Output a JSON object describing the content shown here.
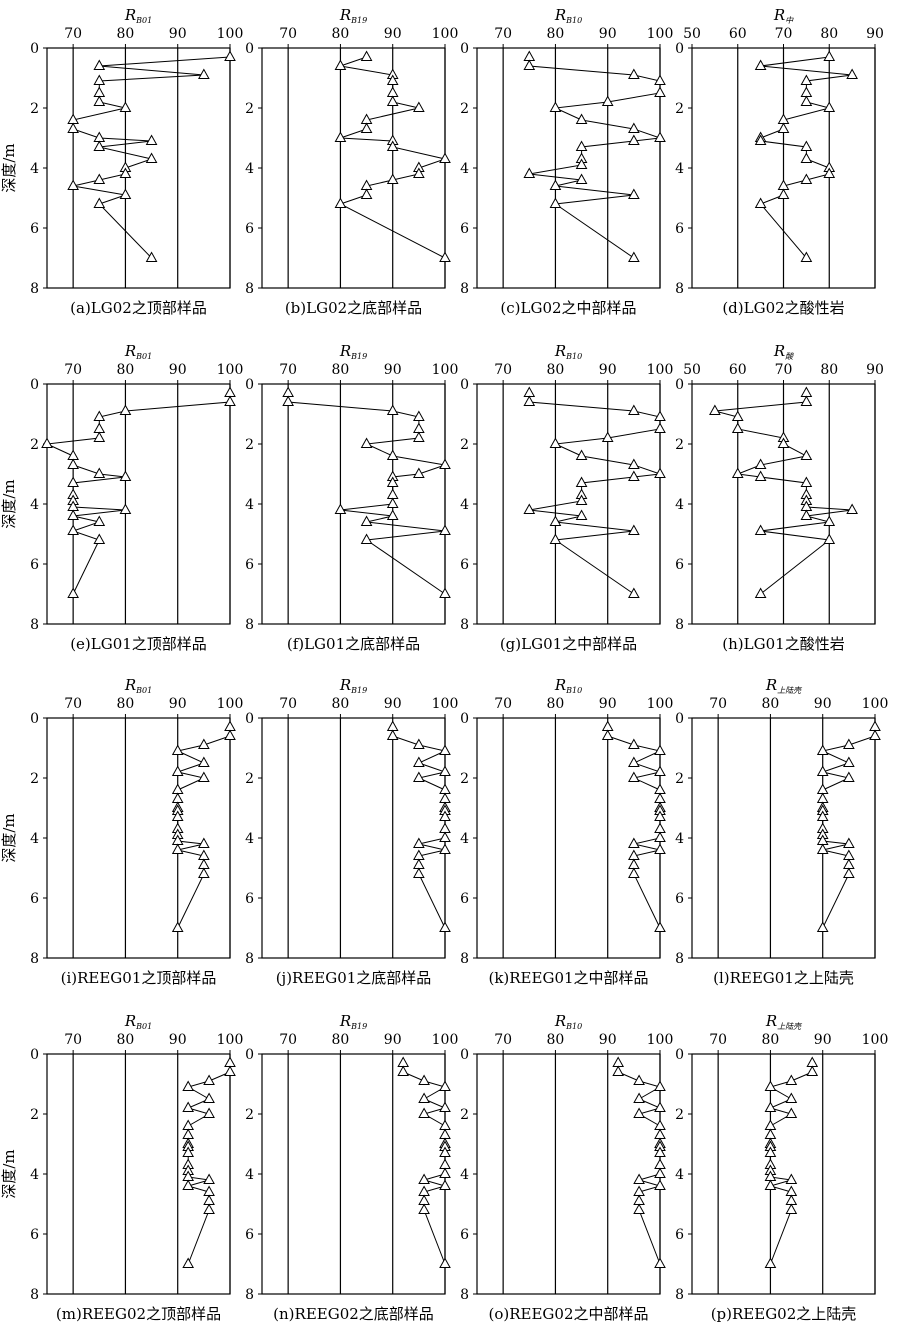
{
  "figure": {
    "y_label": "深度/m",
    "y_ticks": [
      0,
      2,
      4,
      6,
      8
    ],
    "ylim": [
      0,
      8
    ]
  },
  "chart_data": [
    {
      "type": "line",
      "caption": "(a)LG02之顶部样品",
      "var": "R",
      "sub": "B01",
      "xlim": [
        65,
        100
      ],
      "x_ticks": [
        70,
        80,
        90,
        100
      ],
      "vlines": [
        70,
        80,
        90,
        100
      ],
      "series": [
        {
          "marker": "triangle",
          "x": [
            100,
            75,
            95,
            75,
            75,
            75,
            80,
            70,
            70,
            75,
            85,
            75,
            85,
            80,
            80,
            75,
            70,
            80,
            75,
            85
          ],
          "y": [
            0.3,
            0.6,
            0.9,
            1.1,
            1.5,
            1.8,
            2.0,
            2.4,
            2.7,
            3.0,
            3.1,
            3.3,
            3.7,
            4.0,
            4.2,
            4.4,
            4.6,
            4.9,
            5.2,
            7.0
          ]
        }
      ]
    },
    {
      "type": "line",
      "caption": "(b)LG02之底部样品",
      "var": "R",
      "sub": "B19",
      "xlim": [
        65,
        100
      ],
      "x_ticks": [
        70,
        80,
        90,
        100
      ],
      "vlines": [
        70,
        80,
        90,
        100
      ],
      "series": [
        {
          "marker": "triangle",
          "x": [
            85,
            80,
            90,
            90,
            90,
            90,
            95,
            85,
            85,
            80,
            90,
            90,
            100,
            95,
            95,
            90,
            85,
            85,
            80,
            100
          ],
          "y": [
            0.3,
            0.6,
            0.9,
            1.1,
            1.5,
            1.8,
            2.0,
            2.4,
            2.7,
            3.0,
            3.1,
            3.3,
            3.7,
            4.0,
            4.2,
            4.4,
            4.6,
            4.9,
            5.2,
            7.0
          ]
        }
      ]
    },
    {
      "type": "line",
      "caption": "(c)LG02之中部样品",
      "var": "R",
      "sub": "B10",
      "xlim": [
        65,
        100
      ],
      "x_ticks": [
        70,
        80,
        90,
        100
      ],
      "vlines": [
        70,
        80,
        90,
        100
      ],
      "series": [
        {
          "marker": "triangle",
          "x": [
            75,
            75,
            95,
            100,
            100,
            90,
            80,
            85,
            95,
            100,
            95,
            85,
            85,
            85,
            75,
            85,
            80,
            95,
            80,
            95
          ],
          "y": [
            0.3,
            0.6,
            0.9,
            1.1,
            1.5,
            1.8,
            2.0,
            2.4,
            2.7,
            3.0,
            3.1,
            3.3,
            3.7,
            3.9,
            4.2,
            4.4,
            4.6,
            4.9,
            5.2,
            7.0
          ]
        }
      ]
    },
    {
      "type": "line",
      "caption": "(d)LG02之酸性岩",
      "var": "R",
      "sub": "中",
      "xlim": [
        50,
        90
      ],
      "x_ticks": [
        50,
        60,
        70,
        80,
        90
      ],
      "vlines": [
        60,
        70,
        80,
        90
      ],
      "series": [
        {
          "marker": "triangle",
          "x": [
            80,
            65,
            85,
            75,
            75,
            75,
            80,
            70,
            70,
            65,
            65,
            75,
            75,
            80,
            80,
            75,
            70,
            70,
            65,
            75
          ],
          "y": [
            0.3,
            0.6,
            0.9,
            1.1,
            1.5,
            1.8,
            2.0,
            2.4,
            2.7,
            3.0,
            3.1,
            3.3,
            3.7,
            4.0,
            4.2,
            4.4,
            4.6,
            4.9,
            5.2,
            7.0
          ]
        }
      ]
    },
    {
      "type": "line",
      "caption": "(e)LG01之顶部样品",
      "var": "R",
      "sub": "B01",
      "xlim": [
        65,
        100
      ],
      "x_ticks": [
        70,
        80,
        90,
        100
      ],
      "vlines": [
        70,
        80,
        90,
        100
      ],
      "series": [
        {
          "marker": "triangle",
          "x": [
            100,
            100,
            80,
            75,
            75,
            75,
            65,
            70,
            70,
            75,
            80,
            70,
            70,
            70,
            70,
            80,
            70,
            75,
            70,
            75,
            70
          ],
          "y": [
            0.3,
            0.6,
            0.9,
            1.1,
            1.5,
            1.8,
            2.0,
            2.4,
            2.7,
            3.0,
            3.1,
            3.3,
            3.7,
            3.9,
            4.1,
            4.2,
            4.4,
            4.6,
            4.9,
            5.2,
            7.0
          ]
        }
      ]
    },
    {
      "type": "line",
      "caption": "(f)LG01之底部样品",
      "var": "R",
      "sub": "B19",
      "xlim": [
        65,
        100
      ],
      "x_ticks": [
        70,
        80,
        90,
        100
      ],
      "vlines": [
        70,
        80,
        90,
        100
      ],
      "series": [
        {
          "marker": "triangle",
          "x": [
            70,
            70,
            90,
            95,
            95,
            95,
            85,
            90,
            100,
            95,
            90,
            90,
            90,
            90,
            80,
            90,
            85,
            100,
            85,
            100
          ],
          "y": [
            0.3,
            0.6,
            0.9,
            1.1,
            1.5,
            1.8,
            2.0,
            2.4,
            2.7,
            3.0,
            3.1,
            3.3,
            3.7,
            4.0,
            4.2,
            4.4,
            4.6,
            4.9,
            5.2,
            7.0
          ]
        }
      ]
    },
    {
      "type": "line",
      "caption": "(g)LG01之中部样品",
      "var": "R",
      "sub": "B10",
      "xlim": [
        65,
        100
      ],
      "x_ticks": [
        70,
        80,
        90,
        100
      ],
      "vlines": [
        70,
        80,
        90,
        100
      ],
      "series": [
        {
          "marker": "triangle",
          "x": [
            75,
            75,
            95,
            100,
            100,
            90,
            80,
            85,
            95,
            100,
            95,
            85,
            85,
            85,
            75,
            85,
            80,
            95,
            80,
            95
          ],
          "y": [
            0.3,
            0.6,
            0.9,
            1.1,
            1.5,
            1.8,
            2.0,
            2.4,
            2.7,
            3.0,
            3.1,
            3.3,
            3.7,
            3.9,
            4.2,
            4.4,
            4.6,
            4.9,
            5.2,
            7.0
          ]
        }
      ]
    },
    {
      "type": "line",
      "caption": "(h)LG01之酸性岩",
      "var": "R",
      "sub": "酸",
      "xlim": [
        50,
        90
      ],
      "x_ticks": [
        50,
        60,
        70,
        80,
        90
      ],
      "vlines": [
        60,
        70,
        80,
        90
      ],
      "series": [
        {
          "marker": "triangle",
          "x": [
            75,
            75,
            55,
            60,
            60,
            70,
            70,
            75,
            65,
            60,
            65,
            75,
            75,
            75,
            75,
            85,
            75,
            80,
            65,
            80,
            65
          ],
          "y": [
            0.3,
            0.6,
            0.9,
            1.1,
            1.5,
            1.8,
            2.0,
            2.4,
            2.7,
            3.0,
            3.1,
            3.3,
            3.7,
            3.9,
            4.1,
            4.2,
            4.4,
            4.6,
            4.9,
            5.2,
            7.0
          ]
        }
      ]
    },
    {
      "type": "line",
      "caption": "(i)REEG01之顶部样品",
      "var": "R",
      "sub": "B01",
      "xlim": [
        65,
        100
      ],
      "x_ticks": [
        70,
        80,
        90,
        100
      ],
      "vlines": [
        70,
        80,
        90,
        100
      ],
      "series": [
        {
          "marker": "triangle",
          "x": [
            100,
            100,
            95,
            90,
            95,
            90,
            95,
            90,
            90,
            90,
            90,
            90,
            90,
            90,
            90,
            95,
            90,
            95,
            95,
            95,
            90
          ],
          "y": [
            0.3,
            0.6,
            0.9,
            1.1,
            1.5,
            1.8,
            2.0,
            2.4,
            2.7,
            3.0,
            3.1,
            3.3,
            3.7,
            3.9,
            4.1,
            4.2,
            4.4,
            4.6,
            4.9,
            5.2,
            7.0
          ]
        }
      ]
    },
    {
      "type": "line",
      "caption": "(j)REEG01之底部样品",
      "var": "R",
      "sub": "B19",
      "xlim": [
        65,
        100
      ],
      "x_ticks": [
        70,
        80,
        90,
        100
      ],
      "vlines": [
        70,
        80,
        90,
        100
      ],
      "series": [
        {
          "marker": "triangle",
          "x": [
            90,
            90,
            95,
            100,
            95,
            100,
            95,
            100,
            100,
            100,
            100,
            100,
            100,
            100,
            95,
            100,
            95,
            95,
            95,
            100
          ],
          "y": [
            0.3,
            0.6,
            0.9,
            1.1,
            1.5,
            1.8,
            2.0,
            2.4,
            2.7,
            3.0,
            3.1,
            3.3,
            3.7,
            4.0,
            4.2,
            4.4,
            4.6,
            4.9,
            5.2,
            7.0
          ]
        }
      ]
    },
    {
      "type": "line",
      "caption": "(k)REEG01之中部样品",
      "var": "R",
      "sub": "B10",
      "xlim": [
        65,
        100
      ],
      "x_ticks": [
        70,
        80,
        90,
        100
      ],
      "vlines": [
        70,
        80,
        90,
        100
      ],
      "series": [
        {
          "marker": "triangle",
          "x": [
            90,
            90,
            95,
            100,
            95,
            100,
            95,
            100,
            100,
            100,
            100,
            100,
            100,
            100,
            95,
            100,
            95,
            95,
            95,
            100
          ],
          "y": [
            0.3,
            0.6,
            0.9,
            1.1,
            1.5,
            1.8,
            2.0,
            2.4,
            2.7,
            3.0,
            3.1,
            3.3,
            3.7,
            4.0,
            4.2,
            4.4,
            4.6,
            4.9,
            5.2,
            7.0
          ]
        }
      ]
    },
    {
      "type": "line",
      "caption": "(l)REEG01之上陆壳",
      "var": "R",
      "sub": "上陆壳",
      "xlim": [
        65,
        100
      ],
      "x_ticks": [
        70,
        80,
        90,
        100
      ],
      "vlines": [
        70,
        80,
        90,
        100
      ],
      "series": [
        {
          "marker": "triangle",
          "x": [
            100,
            100,
            95,
            90,
            95,
            90,
            95,
            90,
            90,
            90,
            90,
            90,
            90,
            90,
            90,
            95,
            90,
            95,
            95,
            95,
            90
          ],
          "y": [
            0.3,
            0.6,
            0.9,
            1.1,
            1.5,
            1.8,
            2.0,
            2.4,
            2.7,
            3.0,
            3.1,
            3.3,
            3.7,
            3.9,
            4.1,
            4.2,
            4.4,
            4.6,
            4.9,
            5.2,
            7.0
          ]
        }
      ]
    },
    {
      "type": "line",
      "caption": "(m)REEG02之顶部样品",
      "var": "R",
      "sub": "B01",
      "xlim": [
        65,
        100
      ],
      "x_ticks": [
        70,
        80,
        90,
        100
      ],
      "vlines": [
        70,
        80,
        90,
        100
      ],
      "series": [
        {
          "marker": "triangle",
          "x": [
            100,
            100,
            96,
            92,
            96,
            92,
            96,
            92,
            92,
            92,
            92,
            92,
            92,
            92,
            92,
            96,
            92,
            96,
            96,
            96,
            92
          ],
          "y": [
            0.3,
            0.6,
            0.9,
            1.1,
            1.5,
            1.8,
            2.0,
            2.4,
            2.7,
            3.0,
            3.1,
            3.3,
            3.7,
            3.9,
            4.1,
            4.2,
            4.4,
            4.6,
            4.9,
            5.2,
            7.0
          ]
        }
      ]
    },
    {
      "type": "line",
      "caption": "(n)REEG02之底部样品",
      "var": "R",
      "sub": "B19",
      "xlim": [
        65,
        100
      ],
      "x_ticks": [
        70,
        80,
        90,
        100
      ],
      "vlines": [
        70,
        80,
        90,
        100
      ],
      "series": [
        {
          "marker": "triangle",
          "x": [
            92,
            92,
            96,
            100,
            96,
            100,
            96,
            100,
            100,
            100,
            100,
            100,
            100,
            100,
            96,
            100,
            96,
            96,
            96,
            100
          ],
          "y": [
            0.3,
            0.6,
            0.9,
            1.1,
            1.5,
            1.8,
            2.0,
            2.4,
            2.7,
            3.0,
            3.1,
            3.3,
            3.7,
            4.0,
            4.2,
            4.4,
            4.6,
            4.9,
            5.2,
            7.0
          ]
        }
      ]
    },
    {
      "type": "line",
      "caption": "(o)REEG02之中部样品",
      "var": "R",
      "sub": "B10",
      "xlim": [
        65,
        100
      ],
      "x_ticks": [
        70,
        80,
        90,
        100
      ],
      "vlines": [
        70,
        80,
        90,
        100
      ],
      "series": [
        {
          "marker": "triangle",
          "x": [
            92,
            92,
            96,
            100,
            96,
            100,
            96,
            100,
            100,
            100,
            100,
            100,
            100,
            100,
            96,
            100,
            96,
            96,
            96,
            100
          ],
          "y": [
            0.3,
            0.6,
            0.9,
            1.1,
            1.5,
            1.8,
            2.0,
            2.4,
            2.7,
            3.0,
            3.1,
            3.3,
            3.7,
            4.0,
            4.2,
            4.4,
            4.6,
            4.9,
            5.2,
            7.0
          ]
        }
      ]
    },
    {
      "type": "line",
      "caption": "(p)REEG02之上陆壳",
      "var": "R",
      "sub": "上陆壳",
      "xlim": [
        65,
        100
      ],
      "x_ticks": [
        70,
        80,
        90,
        100
      ],
      "vlines": [
        70,
        80,
        90,
        100
      ],
      "series": [
        {
          "marker": "triangle",
          "x": [
            88,
            88,
            84,
            80,
            84,
            80,
            84,
            80,
            80,
            80,
            80,
            80,
            80,
            80,
            80,
            84,
            80,
            84,
            84,
            84,
            80
          ],
          "y": [
            0.3,
            0.6,
            0.9,
            1.1,
            1.5,
            1.8,
            2.0,
            2.4,
            2.7,
            3.0,
            3.1,
            3.3,
            3.7,
            3.9,
            4.1,
            4.2,
            4.4,
            4.6,
            4.9,
            5.2,
            7.0
          ]
        }
      ]
    }
  ]
}
